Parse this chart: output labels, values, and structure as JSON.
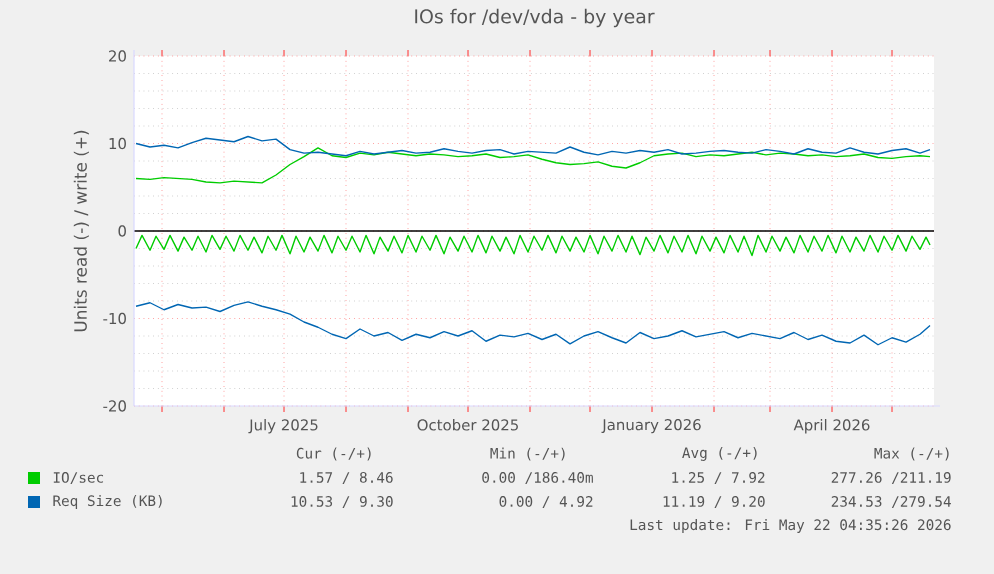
{
  "chart_data": {
    "type": "line",
    "title": "IOs for /dev/vda - by year",
    "ylabel": "Units read (-) / write (+)",
    "xlim": [
      "2025-04-17",
      "2026-05-22"
    ],
    "ylim": [
      -20,
      20
    ],
    "yticks": [
      -20,
      -10,
      0,
      10,
      20
    ],
    "xticks": [
      {
        "value": "2025-05-01",
        "label": null
      },
      {
        "value": "2025-06-01",
        "label": null
      },
      {
        "value": "2025-07-01",
        "label": "July 2025"
      },
      {
        "value": "2025-08-01",
        "label": null
      },
      {
        "value": "2025-09-01",
        "label": null
      },
      {
        "value": "2025-10-01",
        "label": "October 2025"
      },
      {
        "value": "2025-11-01",
        "label": null
      },
      {
        "value": "2025-12-01",
        "label": null
      },
      {
        "value": "2026-01-01",
        "label": "January 2026"
      },
      {
        "value": "2026-02-01",
        "label": null
      },
      {
        "value": "2026-03-01",
        "label": null
      },
      {
        "value": "2026-04-01",
        "label": "April 2026"
      },
      {
        "value": "2026-05-01",
        "label": null
      }
    ],
    "grid": true,
    "legend": "bottom",
    "ref_lines": [
      {
        "axis": "y",
        "value": 0,
        "color": "#000000"
      }
    ],
    "x": [
      "2025-04-18",
      "2025-04-25",
      "2025-05-02",
      "2025-05-09",
      "2025-05-16",
      "2025-05-23",
      "2025-05-30",
      "2025-06-06",
      "2025-06-13",
      "2025-06-20",
      "2025-06-27",
      "2025-07-04",
      "2025-07-11",
      "2025-07-18",
      "2025-07-25",
      "2025-08-01",
      "2025-08-08",
      "2025-08-15",
      "2025-08-22",
      "2025-08-29",
      "2025-09-05",
      "2025-09-12",
      "2025-09-19",
      "2025-09-26",
      "2025-10-03",
      "2025-10-10",
      "2025-10-17",
      "2025-10-24",
      "2025-10-31",
      "2025-11-07",
      "2025-11-14",
      "2025-11-21",
      "2025-11-28",
      "2025-12-05",
      "2025-12-12",
      "2025-12-19",
      "2025-12-26",
      "2026-01-02",
      "2026-01-09",
      "2026-01-16",
      "2026-01-23",
      "2026-01-30",
      "2026-02-06",
      "2026-02-13",
      "2026-02-20",
      "2026-02-27",
      "2026-03-06",
      "2026-03-13",
      "2026-03-20",
      "2026-03-27",
      "2026-04-03",
      "2026-04-10",
      "2026-04-17",
      "2026-04-24",
      "2026-05-01",
      "2026-05-08",
      "2026-05-15",
      "2026-05-20"
    ],
    "series": [
      {
        "name": "IO/sec",
        "color": "#00cc00",
        "values": [
          6.0,
          5.9,
          6.1,
          6.0,
          5.9,
          5.6,
          5.5,
          5.7,
          5.6,
          5.5,
          6.4,
          7.6,
          8.5,
          9.5,
          8.6,
          8.4,
          8.9,
          8.7,
          9.0,
          8.8,
          8.6,
          8.8,
          8.7,
          8.5,
          8.6,
          8.8,
          8.4,
          8.5,
          8.7,
          8.2,
          7.8,
          7.6,
          7.7,
          7.9,
          7.4,
          7.2,
          7.8,
          8.6,
          8.8,
          8.9,
          8.5,
          8.7,
          8.6,
          8.8,
          9.0,
          8.7,
          8.9,
          8.8,
          8.6,
          8.7,
          8.5,
          8.6,
          8.8,
          8.4,
          8.3,
          8.5,
          8.6,
          8.5
        ]
      },
      {
        "color": "#00cc00",
        "x": [
          "2025-04-18",
          "2025-04-21",
          "2025-04-25",
          "2025-04-28",
          "2025-05-02",
          "2025-05-05",
          "2025-05-09",
          "2025-05-12",
          "2025-05-16",
          "2025-05-19",
          "2025-05-23",
          "2025-05-26",
          "2025-05-30",
          "2025-06-02",
          "2025-06-06",
          "2025-06-09",
          "2025-06-13",
          "2025-06-16",
          "2025-06-20",
          "2025-06-23",
          "2025-06-27",
          "2025-06-30",
          "2025-07-04",
          "2025-07-07",
          "2025-07-11",
          "2025-07-14",
          "2025-07-18",
          "2025-07-21",
          "2025-07-25",
          "2025-07-28",
          "2025-08-01",
          "2025-08-04",
          "2025-08-08",
          "2025-08-11",
          "2025-08-15",
          "2025-08-18",
          "2025-08-22",
          "2025-08-25",
          "2025-08-29",
          "2025-09-01",
          "2025-09-05",
          "2025-09-08",
          "2025-09-12",
          "2025-09-15",
          "2025-09-19",
          "2025-09-22",
          "2025-09-26",
          "2025-09-29",
          "2025-10-03",
          "2025-10-06",
          "2025-10-10",
          "2025-10-13",
          "2025-10-17",
          "2025-10-20",
          "2025-10-24",
          "2025-10-27",
          "2025-10-31",
          "2025-11-03",
          "2025-11-07",
          "2025-11-10",
          "2025-11-14",
          "2025-11-17",
          "2025-11-21",
          "2025-11-24",
          "2025-11-28",
          "2025-12-01",
          "2025-12-05",
          "2025-12-08",
          "2025-12-12",
          "2025-12-15",
          "2025-12-19",
          "2025-12-22",
          "2025-12-26",
          "2025-12-29",
          "2026-01-02",
          "2026-01-05",
          "2026-01-09",
          "2026-01-12",
          "2026-01-16",
          "2026-01-19",
          "2026-01-23",
          "2026-01-26",
          "2026-01-30",
          "2026-02-02",
          "2026-02-06",
          "2026-02-09",
          "2026-02-13",
          "2026-02-16",
          "2026-02-20",
          "2026-02-23",
          "2026-02-27",
          "2026-03-02",
          "2026-03-06",
          "2026-03-09",
          "2026-03-13",
          "2026-03-16",
          "2026-03-20",
          "2026-03-23",
          "2026-03-27",
          "2026-03-30",
          "2026-04-03",
          "2026-04-06",
          "2026-04-10",
          "2026-04-13",
          "2026-04-17",
          "2026-04-20",
          "2026-04-24",
          "2026-04-27",
          "2026-05-01",
          "2026-05-04",
          "2026-05-08",
          "2026-05-11",
          "2026-05-15",
          "2026-05-18",
          "2026-05-20"
        ],
        "values": [
          -2.0,
          -0.5,
          -2.2,
          -0.6,
          -2.1,
          -0.5,
          -2.3,
          -0.7,
          -2.2,
          -0.6,
          -2.4,
          -0.5,
          -2.1,
          -0.6,
          -2.3,
          -0.5,
          -2.2,
          -0.7,
          -2.5,
          -0.6,
          -2.2,
          -0.5,
          -2.6,
          -0.6,
          -2.4,
          -0.7,
          -2.3,
          -0.5,
          -2.5,
          -0.6,
          -2.2,
          -0.6,
          -2.4,
          -0.5,
          -2.6,
          -0.7,
          -2.3,
          -0.6,
          -2.5,
          -0.5,
          -2.4,
          -0.6,
          -2.2,
          -0.5,
          -2.6,
          -0.7,
          -2.3,
          -0.6,
          -2.4,
          -0.5,
          -2.5,
          -0.6,
          -2.3,
          -0.7,
          -2.6,
          -0.5,
          -2.4,
          -0.6,
          -2.2,
          -0.5,
          -2.5,
          -0.6,
          -2.3,
          -0.7,
          -2.4,
          -0.5,
          -2.6,
          -0.6,
          -2.3,
          -0.5,
          -2.4,
          -0.6,
          -2.7,
          -0.7,
          -2.3,
          -0.5,
          -2.5,
          -0.6,
          -2.4,
          -0.5,
          -2.6,
          -0.6,
          -2.3,
          -0.7,
          -2.5,
          -0.5,
          -2.4,
          -0.6,
          -2.8,
          -0.5,
          -2.4,
          -0.6,
          -2.3,
          -0.7,
          -2.5,
          -0.5,
          -2.4,
          -0.6,
          -2.3,
          -0.5,
          -2.5,
          -0.6,
          -2.4,
          -0.7,
          -2.3,
          -0.5,
          -2.4,
          -0.6,
          -2.2,
          -0.5,
          -2.3,
          -0.6,
          -2.1,
          -0.7,
          -1.6
        ]
      },
      {
        "name": "Req Size (KB)",
        "color": "#0066b3",
        "values": [
          10.0,
          9.6,
          9.8,
          9.5,
          10.1,
          10.6,
          10.4,
          10.2,
          10.8,
          10.3,
          10.5,
          9.3,
          8.9,
          9.0,
          8.8,
          8.6,
          9.1,
          8.8,
          9.0,
          9.2,
          8.9,
          9.0,
          9.4,
          9.1,
          8.9,
          9.2,
          9.3,
          8.8,
          9.1,
          9.0,
          8.9,
          9.6,
          9.0,
          8.7,
          9.1,
          8.9,
          9.2,
          9.0,
          9.3,
          8.8,
          8.9,
          9.1,
          9.2,
          9.0,
          8.9,
          9.3,
          9.1,
          8.8,
          9.4,
          9.0,
          8.9,
          9.5,
          9.0,
          8.8,
          9.2,
          9.4,
          8.9,
          9.3
        ]
      },
      {
        "color": "#0066b3",
        "values": [
          -8.6,
          -8.2,
          -9.0,
          -8.4,
          -8.8,
          -8.7,
          -9.2,
          -8.5,
          -8.1,
          -8.6,
          -9.0,
          -9.5,
          -10.4,
          -11.0,
          -11.8,
          -12.3,
          -11.2,
          -12.0,
          -11.6,
          -12.5,
          -11.8,
          -12.2,
          -11.5,
          -12.0,
          -11.4,
          -12.6,
          -11.9,
          -12.1,
          -11.7,
          -12.4,
          -11.8,
          -12.9,
          -12.0,
          -11.5,
          -12.2,
          -12.8,
          -11.6,
          -12.3,
          -12.0,
          -11.4,
          -12.1,
          -11.8,
          -11.5,
          -12.2,
          -11.7,
          -12.0,
          -12.3,
          -11.6,
          -12.4,
          -11.9,
          -12.6,
          -12.8,
          -11.9,
          -13.0,
          -12.2,
          -12.7,
          -11.8,
          -10.8
        ]
      }
    ],
    "annotations": [
      "Cur (-/+)",
      "Min (-/+)",
      "Avg (-/+)",
      "Max (-/+)",
      "1.57 / 8.46",
      "0.00 /186.40m",
      "1.25 / 7.92",
      "277.26 /211.19",
      "10.53 / 9.30",
      "0.00 / 4.92",
      "11.19 / 9.20",
      "234.53 /279.54",
      "Last update: Fri May 22 04:35:26 2026"
    ]
  }
}
